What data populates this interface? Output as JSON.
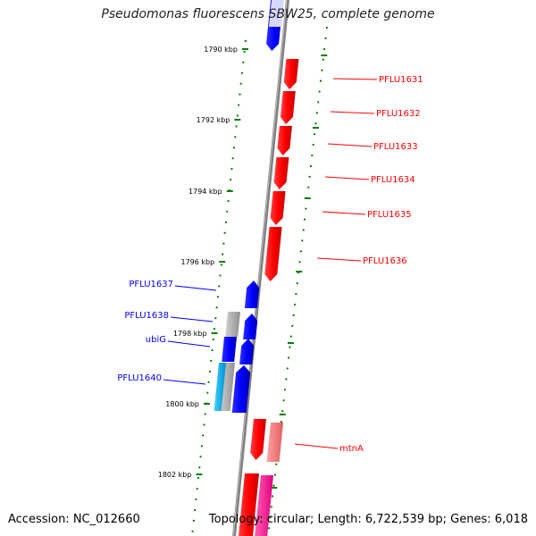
{
  "title": "Pseudomonas fluorescens SBW25, complete genome",
  "footer": {
    "accession": "Accession: NC_012660",
    "summary": "Topology: circular; Length: 6,722,539 bp; Genes: 6,018"
  },
  "colors": {
    "forward_gene": "#ff0000",
    "reverse_gene": "#0000ff",
    "other_feature_light": "#f08080",
    "other_feature_pink": "#ff1493",
    "pseudo_or_rna": "#b0b0b0",
    "cyan_feature": "#00bfff",
    "backbone": "#808080",
    "ticks": "#008000"
  },
  "scale_ticks": [
    {
      "label": "1790 kbp"
    },
    {
      "label": "1792 kbp"
    },
    {
      "label": "1794 kbp"
    },
    {
      "label": "1796 kbp"
    },
    {
      "label": "1798 kbp"
    },
    {
      "label": "1800 kbp"
    },
    {
      "label": "1802 kbp"
    }
  ],
  "gene_labels_forward": [
    {
      "label": "PFLU1631"
    },
    {
      "label": "PFLU1632"
    },
    {
      "label": "PFLU1633"
    },
    {
      "label": "PFLU1634"
    },
    {
      "label": "PFLU1635"
    },
    {
      "label": "PFLU1636"
    },
    {
      "label": "mtnA"
    }
  ],
  "gene_labels_reverse": [
    {
      "label": "PFLU1637"
    },
    {
      "label": "PFLU1638"
    },
    {
      "label": "ubiG"
    },
    {
      "label": "PFLU1640"
    }
  ]
}
